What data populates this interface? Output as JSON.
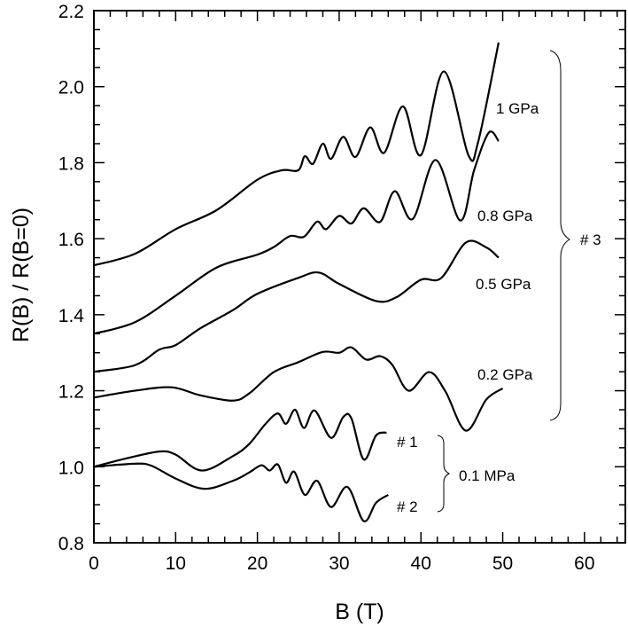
{
  "chart_data": {
    "type": "line",
    "title": "",
    "xlabel": "B (T)",
    "ylabel": "R(B) / R(B=0)",
    "xlim": [
      0,
      65
    ],
    "ylim": [
      0.8,
      2.2
    ],
    "xticks": [
      "0",
      "10",
      "20",
      "30",
      "40",
      "50",
      "60"
    ],
    "yticks": [
      "0.8",
      "1.0",
      "1.2",
      "1.4",
      "1.6",
      "1.8",
      "2.0",
      "2.2"
    ],
    "grid": false,
    "line_color": "#000000",
    "series": [
      {
        "name": "1 GPa",
        "x": [
          0,
          5,
          10,
          15,
          20,
          23,
          25,
          25.8,
          26.8,
          28,
          29,
          30.5,
          32,
          33.8,
          35.5,
          37.8,
          40,
          42.8,
          45.8,
          47,
          49.5
        ],
        "y": [
          1.53,
          1.56,
          1.625,
          1.675,
          1.755,
          1.78,
          1.78,
          1.817,
          1.797,
          1.85,
          1.81,
          1.868,
          1.815,
          1.893,
          1.826,
          1.948,
          1.82,
          2.04,
          1.82,
          1.855,
          2.116
        ]
      },
      {
        "name": "0.8 GPa",
        "x": [
          0,
          5,
          10,
          15,
          20,
          22,
          24,
          25.7,
          27.3,
          28.4,
          30,
          31.5,
          33,
          35,
          36.8,
          39,
          41.8,
          44.8,
          46.5,
          48.3,
          49.5
        ],
        "y": [
          1.35,
          1.38,
          1.45,
          1.524,
          1.558,
          1.578,
          1.607,
          1.605,
          1.645,
          1.625,
          1.66,
          1.64,
          1.68,
          1.644,
          1.725,
          1.652,
          1.807,
          1.648,
          1.78,
          1.879,
          1.857
        ]
      },
      {
        "name": "0.5 GPa",
        "x": [
          0,
          5,
          8,
          10,
          13,
          17,
          20,
          25,
          27.5,
          30,
          34.5,
          37,
          40,
          42.5,
          45.5,
          48,
          49.5
        ],
        "y": [
          1.25,
          1.267,
          1.308,
          1.32,
          1.364,
          1.412,
          1.455,
          1.497,
          1.511,
          1.481,
          1.436,
          1.446,
          1.492,
          1.497,
          1.59,
          1.577,
          1.55
        ]
      },
      {
        "name": "0.2 GPa",
        "x": [
          0,
          5,
          9.5,
          13,
          17,
          19,
          22,
          25,
          28,
          30,
          31.5,
          33.3,
          35,
          36.5,
          38.5,
          41,
          43,
          45.5,
          48,
          50
        ],
        "y": [
          1.182,
          1.2,
          1.209,
          1.188,
          1.174,
          1.193,
          1.249,
          1.275,
          1.302,
          1.3,
          1.314,
          1.282,
          1.291,
          1.268,
          1.2,
          1.249,
          1.198,
          1.095,
          1.177,
          1.206
        ]
      },
      {
        "name": "# 1",
        "x": [
          0,
          4,
          8,
          10,
          13.2,
          17,
          19,
          21,
          22.5,
          23.5,
          24.6,
          25.7,
          27,
          29,
          30.5,
          31.5,
          33,
          34.5,
          35.8
        ],
        "y": [
          1.0,
          1.022,
          1.04,
          1.032,
          0.99,
          1.028,
          1.06,
          1.113,
          1.14,
          1.113,
          1.15,
          1.102,
          1.148,
          1.076,
          1.131,
          1.127,
          1.019,
          1.082,
          1.09
        ]
      },
      {
        "name": "# 2",
        "x": [
          0,
          5,
          7,
          10,
          13.5,
          17,
          19,
          20.5,
          21.5,
          22.5,
          23.5,
          24.5,
          25.8,
          27.3,
          29,
          31,
          33,
          34.5,
          36
        ],
        "y": [
          1.0,
          1.008,
          1.003,
          0.969,
          0.942,
          0.963,
          0.985,
          1.004,
          0.99,
          1.006,
          0.958,
          0.987,
          0.926,
          0.963,
          0.894,
          0.947,
          0.857,
          0.905,
          0.926
        ]
      }
    ],
    "annotations": {
      "p1": "1 GPa",
      "p08": "0.8 GPa",
      "p05": "0.5 GPa",
      "p02": "0.2 GPa",
      "s3": "# 3",
      "s1": "# 1",
      "s2": "# 2",
      "p01": "0.1 MPa"
    }
  }
}
